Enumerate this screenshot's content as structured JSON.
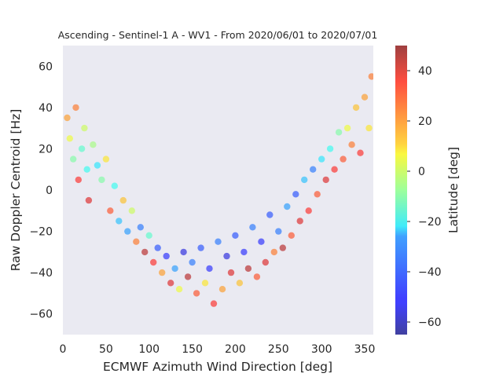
{
  "chart_data": {
    "type": "scatter",
    "title": "Ascending - Sentinel-1 A - WV1 - From 2020/06/01 to 2020/07/01",
    "xlabel": "ECMWF Azimuth Wind Direction [deg]",
    "ylabel": "Raw Doppler Centroid [Hz]",
    "colorbar_label": "Latitude [deg]",
    "xlim": [
      0,
      360
    ],
    "ylim": [
      -70,
      70
    ],
    "clim": [
      -65,
      50
    ],
    "x_ticks": [
      0,
      50,
      100,
      150,
      200,
      250,
      300,
      350
    ],
    "y_ticks": [
      -60,
      -40,
      -20,
      0,
      20,
      40,
      60
    ],
    "colorbar_ticks": [
      -60,
      -40,
      -20,
      0,
      20,
      40
    ],
    "colormap": "jet",
    "marker_alpha": 0.55,
    "background_color": "#eaeaf2",
    "grid": false,
    "description_of_distribution": "V-shaped cloud: high Doppler (~0 to 50 Hz) near 0 and 360 deg, minimum around -40 Hz near 180 deg; mid latitudes (-20..20) dominate near the edges, southern (blue) and northern (red) latitudes dominate the trough.",
    "points": [
      {
        "x": 5,
        "y": 35,
        "lat": 20
      },
      {
        "x": 8,
        "y": 25,
        "lat": 5
      },
      {
        "x": 12,
        "y": 15,
        "lat": -10
      },
      {
        "x": 15,
        "y": 40,
        "lat": 25
      },
      {
        "x": 18,
        "y": 5,
        "lat": 35
      },
      {
        "x": 22,
        "y": 20,
        "lat": -15
      },
      {
        "x": 25,
        "y": 30,
        "lat": 0
      },
      {
        "x": 28,
        "y": 10,
        "lat": -20
      },
      {
        "x": 30,
        "y": -5,
        "lat": 40
      },
      {
        "x": 35,
        "y": 22,
        "lat": -5
      },
      {
        "x": 40,
        "y": 12,
        "lat": -25
      },
      {
        "x": 45,
        "y": 5,
        "lat": -10
      },
      {
        "x": 50,
        "y": 15,
        "lat": 10
      },
      {
        "x": 55,
        "y": -10,
        "lat": 30
      },
      {
        "x": 60,
        "y": 2,
        "lat": -20
      },
      {
        "x": 65,
        "y": -15,
        "lat": -30
      },
      {
        "x": 70,
        "y": -5,
        "lat": 15
      },
      {
        "x": 75,
        "y": -20,
        "lat": -35
      },
      {
        "x": 80,
        "y": -10,
        "lat": 0
      },
      {
        "x": 85,
        "y": -25,
        "lat": 25
      },
      {
        "x": 90,
        "y": -18,
        "lat": -40
      },
      {
        "x": 95,
        "y": -30,
        "lat": 45
      },
      {
        "x": 100,
        "y": -22,
        "lat": -15
      },
      {
        "x": 105,
        "y": -35,
        "lat": 35
      },
      {
        "x": 110,
        "y": -28,
        "lat": -45
      },
      {
        "x": 115,
        "y": -40,
        "lat": 20
      },
      {
        "x": 120,
        "y": -32,
        "lat": -50
      },
      {
        "x": 125,
        "y": -45,
        "lat": 40
      },
      {
        "x": 130,
        "y": -38,
        "lat": -35
      },
      {
        "x": 135,
        "y": -48,
        "lat": 5
      },
      {
        "x": 140,
        "y": -30,
        "lat": -55
      },
      {
        "x": 145,
        "y": -42,
        "lat": 45
      },
      {
        "x": 150,
        "y": -35,
        "lat": -40
      },
      {
        "x": 155,
        "y": -50,
        "lat": 30
      },
      {
        "x": 160,
        "y": -28,
        "lat": -45
      },
      {
        "x": 165,
        "y": -45,
        "lat": 10
      },
      {
        "x": 170,
        "y": -38,
        "lat": -50
      },
      {
        "x": 175,
        "y": -55,
        "lat": 35
      },
      {
        "x": 180,
        "y": -25,
        "lat": -40
      },
      {
        "x": 185,
        "y": -48,
        "lat": 20
      },
      {
        "x": 190,
        "y": -32,
        "lat": -55
      },
      {
        "x": 195,
        "y": -40,
        "lat": 40
      },
      {
        "x": 200,
        "y": -22,
        "lat": -45
      },
      {
        "x": 205,
        "y": -45,
        "lat": 15
      },
      {
        "x": 210,
        "y": -30,
        "lat": -50
      },
      {
        "x": 215,
        "y": -38,
        "lat": 45
      },
      {
        "x": 220,
        "y": -18,
        "lat": -40
      },
      {
        "x": 225,
        "y": -42,
        "lat": 30
      },
      {
        "x": 230,
        "y": -25,
        "lat": -50
      },
      {
        "x": 235,
        "y": -35,
        "lat": 40
      },
      {
        "x": 240,
        "y": -12,
        "lat": -45
      },
      {
        "x": 245,
        "y": -30,
        "lat": 25
      },
      {
        "x": 250,
        "y": -20,
        "lat": -40
      },
      {
        "x": 255,
        "y": -28,
        "lat": 45
      },
      {
        "x": 260,
        "y": -8,
        "lat": -35
      },
      {
        "x": 265,
        "y": -22,
        "lat": 30
      },
      {
        "x": 270,
        "y": -2,
        "lat": -45
      },
      {
        "x": 275,
        "y": -15,
        "lat": 40
      },
      {
        "x": 280,
        "y": 5,
        "lat": -30
      },
      {
        "x": 285,
        "y": -10,
        "lat": 35
      },
      {
        "x": 290,
        "y": 10,
        "lat": -40
      },
      {
        "x": 295,
        "y": -2,
        "lat": 30
      },
      {
        "x": 300,
        "y": 15,
        "lat": -25
      },
      {
        "x": 305,
        "y": 5,
        "lat": 40
      },
      {
        "x": 310,
        "y": 20,
        "lat": -20
      },
      {
        "x": 315,
        "y": 10,
        "lat": 35
      },
      {
        "x": 320,
        "y": 28,
        "lat": -10
      },
      {
        "x": 325,
        "y": 15,
        "lat": 30
      },
      {
        "x": 330,
        "y": 30,
        "lat": 5
      },
      {
        "x": 335,
        "y": 22,
        "lat": 25
      },
      {
        "x": 340,
        "y": 40,
        "lat": 15
      },
      {
        "x": 345,
        "y": 18,
        "lat": 35
      },
      {
        "x": 350,
        "y": 45,
        "lat": 20
      },
      {
        "x": 355,
        "y": 30,
        "lat": 10
      },
      {
        "x": 358,
        "y": 55,
        "lat": 25
      }
    ]
  }
}
